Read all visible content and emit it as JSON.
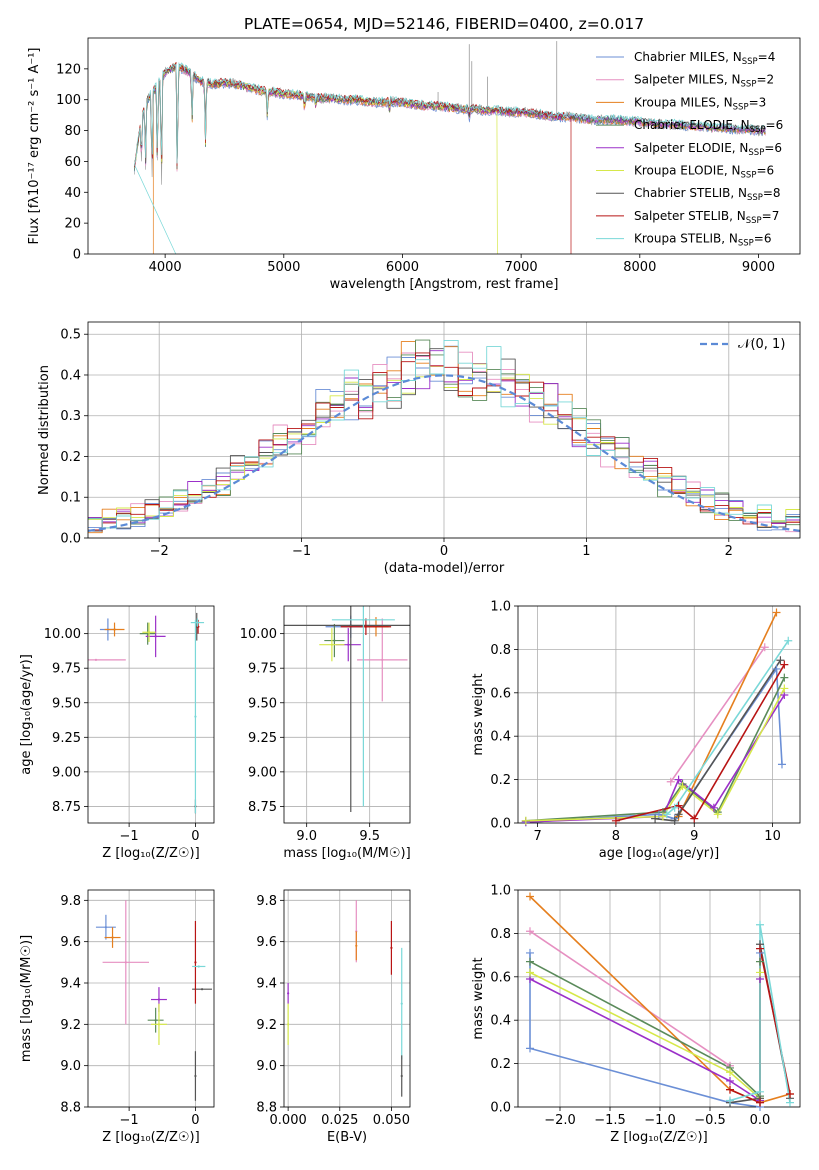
{
  "palette": [
    "#6b8fd6",
    "#e68fc1",
    "#e57f1e",
    "#5a8a5a",
    "#9b30c9",
    "#d6e84a",
    "#555555",
    "#b81414",
    "#7ad8d8"
  ],
  "chart_data": [
    {
      "id": "spectrum",
      "type": "line",
      "title": "PLATE=0654, MJD=52146, FIBERID=0400, z=0.017",
      "xlabel": "wavelength [Angstrom, rest frame]",
      "ylabel": "Flux [fλ10⁻¹⁷ erg cm⁻² s⁻¹ A⁻¹]",
      "xlim": [
        3350,
        9350
      ],
      "ylim": [
        0,
        140
      ],
      "xticks": [
        4000,
        5000,
        6000,
        7000,
        8000,
        9000
      ],
      "yticks": [
        0,
        20,
        40,
        60,
        80,
        100,
        120
      ],
      "grid": false,
      "legend_position": "top-right",
      "series": [
        {
          "name": "Chabrier MILES, N_SSP=4"
        },
        {
          "name": "Salpeter MILES, N_SSP=2"
        },
        {
          "name": "Kroupa MILES, N_SSP=3"
        },
        {
          "name": "Chabrier ELODIE, N_SSP=6"
        },
        {
          "name": "Salpeter ELODIE, N_SSP=6"
        },
        {
          "name": "Kroupa ELODIE, N_SSP=6"
        },
        {
          "name": "Chabrier STELIB, N_SSP=8"
        },
        {
          "name": "Salpeter STELIB, N_SSP=7"
        },
        {
          "name": "Kroupa STELIB, N_SSP=6"
        }
      ],
      "continuum": [
        [
          3740,
          55
        ],
        [
          3800,
          88
        ],
        [
          3850,
          100
        ],
        [
          3900,
          105
        ],
        [
          4000,
          118
        ],
        [
          4100,
          122
        ],
        [
          4200,
          118
        ],
        [
          4300,
          112
        ],
        [
          4400,
          110
        ],
        [
          4500,
          111
        ],
        [
          4600,
          110
        ],
        [
          4700,
          108
        ],
        [
          4800,
          106
        ],
        [
          4900,
          105
        ],
        [
          5000,
          104
        ],
        [
          5100,
          103
        ],
        [
          5200,
          102
        ],
        [
          5300,
          101
        ],
        [
          5400,
          101
        ],
        [
          5500,
          100
        ],
        [
          5600,
          100
        ],
        [
          5700,
          99
        ],
        [
          5800,
          98
        ],
        [
          5900,
          99
        ],
        [
          6000,
          98
        ],
        [
          6100,
          97
        ],
        [
          6200,
          96
        ],
        [
          6300,
          96
        ],
        [
          6400,
          95
        ],
        [
          6500,
          94
        ],
        [
          6600,
          94
        ],
        [
          6700,
          93
        ],
        [
          6800,
          93
        ],
        [
          6900,
          92
        ],
        [
          7000,
          92
        ],
        [
          7100,
          91
        ],
        [
          7200,
          90
        ],
        [
          7300,
          89
        ],
        [
          7400,
          89
        ],
        [
          7500,
          88
        ],
        [
          7600,
          87
        ],
        [
          7700,
          87
        ],
        [
          7800,
          87
        ],
        [
          7900,
          86
        ],
        [
          8000,
          86
        ],
        [
          8100,
          85
        ],
        [
          8200,
          84
        ],
        [
          8300,
          84
        ],
        [
          8400,
          83
        ],
        [
          8500,
          83
        ],
        [
          8600,
          82
        ],
        [
          8700,
          82
        ],
        [
          8800,
          81
        ],
        [
          8900,
          81
        ],
        [
          9000,
          80
        ],
        [
          9060,
          80
        ]
      ],
      "absorption_lines": [
        [
          3800,
          58
        ],
        [
          3835,
          55
        ],
        [
          3889,
          45
        ],
        [
          3934,
          55
        ],
        [
          3969,
          38
        ],
        [
          4102,
          40
        ],
        [
          4227,
          85
        ],
        [
          4340,
          72
        ],
        [
          4861,
          88
        ],
        [
          5175,
          94
        ],
        [
          5270,
          96
        ],
        [
          5890,
          93
        ],
        [
          6563,
          88
        ]
      ],
      "emission_lines": [
        [
          6300,
          105
        ],
        [
          6563,
          136
        ],
        [
          6584,
          125
        ],
        [
          6717,
          115
        ],
        [
          7300,
          138
        ]
      ],
      "model_cutoffs": [
        {
          "series": 2,
          "x": 3900
        },
        {
          "series": 8,
          "x": 4090
        },
        {
          "series": 5,
          "x": 6800
        },
        {
          "series": 7,
          "x": 7420
        }
      ]
    },
    {
      "id": "residuals",
      "type": "line",
      "xlabel": "(data-model)/error",
      "ylabel": "Normed distribution",
      "xlim": [
        -2.5,
        2.5
      ],
      "ylim": [
        0,
        0.53
      ],
      "xticks": [
        -2,
        -1,
        0,
        1,
        2
      ],
      "yticks": [
        0.0,
        0.1,
        0.2,
        0.3,
        0.4,
        0.5
      ],
      "grid": true,
      "legend_position": "top-right",
      "reference": {
        "name": "𝒩(0, 1)",
        "mu": 0,
        "sigma": 1
      },
      "bin_width": 0.1
    },
    {
      "id": "age-vs-Z",
      "type": "scatter",
      "xlabel": "Z [log₁₀(Z/Z☉)]",
      "ylabel": "age  [log₁₀(age/yr)]",
      "xlim": [
        -1.62,
        0.28
      ],
      "ylim": [
        8.63,
        10.2
      ],
      "xticks": [
        -1,
        0
      ],
      "yticks": [
        8.75,
        9.0,
        9.25,
        9.5,
        9.75,
        10.0
      ],
      "grid": true,
      "points": [
        {
          "s": 0,
          "x": -1.32,
          "xerr": 0.12,
          "y": 10.03,
          "yerr": 0.08
        },
        {
          "s": 1,
          "x": -1.5,
          "xerr": 0.45,
          "y": 9.81,
          "yerr": 0.0
        },
        {
          "s": 2,
          "x": -1.22,
          "xerr": 0.15,
          "y": 10.03,
          "yerr": 0.05
        },
        {
          "s": 3,
          "x": -0.72,
          "xerr": 0.12,
          "y": 10.0,
          "yerr": 0.08
        },
        {
          "s": 4,
          "x": -0.6,
          "xerr": 0.15,
          "y": 9.98,
          "yerr": 0.15
        },
        {
          "s": 5,
          "x": -0.7,
          "xerr": 0.1,
          "y": 10.01,
          "yerr": 0.07
        },
        {
          "s": 6,
          "x": 0.02,
          "xerr": 0.0,
          "y": 10.05,
          "yerr": 0.1
        },
        {
          "s": 7,
          "x": 0.04,
          "xerr": 0.02,
          "y": 10.05,
          "yerr": 0.05
        },
        {
          "s": 8,
          "x": 0.03,
          "xerr": 0.1,
          "y": 10.08,
          "yerr": 0.03
        },
        {
          "s": 6,
          "x": 0.0,
          "xerr": 0.0,
          "y": 8.75,
          "yerr": 0.05
        },
        {
          "s": 8,
          "x": 0.0,
          "xerr": 0.0,
          "y": 9.4,
          "yerr": 0.7
        }
      ]
    },
    {
      "id": "age-vs-mass",
      "type": "scatter",
      "xlabel": "mass [log₁₀(M/M☉)]",
      "ylabel": "",
      "xlim": [
        8.82,
        9.82
      ],
      "ylim": [
        8.63,
        10.2
      ],
      "xticks": [
        9.0,
        9.5
      ],
      "yticks": [
        8.75,
        9.0,
        9.25,
        9.5,
        9.75,
        10.0
      ],
      "grid": true,
      "points": [
        {
          "s": 0,
          "x": 9.35,
          "xerr": 0.2,
          "y": 10.05,
          "yerr": 0.08
        },
        {
          "s": 1,
          "x": 9.6,
          "xerr": 0.2,
          "y": 9.81,
          "yerr": 0.3
        },
        {
          "s": 2,
          "x": 9.55,
          "xerr": 0.1,
          "y": 10.05,
          "yerr": 0.07
        },
        {
          "s": 3,
          "x": 9.22,
          "xerr": 0.08,
          "y": 9.95,
          "yerr": 0.12
        },
        {
          "s": 4,
          "x": 9.33,
          "xerr": 0.1,
          "y": 9.92,
          "yerr": 0.12
        },
        {
          "s": 5,
          "x": 9.2,
          "xerr": 0.1,
          "y": 9.92,
          "yerr": 0.12
        },
        {
          "s": 6,
          "x": 9.35,
          "xerr": 0.6,
          "y": 10.06,
          "yerr": 1.35
        },
        {
          "s": 7,
          "x": 9.47,
          "xerr": 0.2,
          "y": 10.05,
          "yerr": 0.06
        },
        {
          "s": 8,
          "x": 9.45,
          "xerr": 0.25,
          "y": 10.1,
          "yerr": 1.35
        }
      ]
    },
    {
      "id": "weight-vs-age",
      "type": "line",
      "xlabel": "age  [log₁₀(age/yr)]",
      "ylabel": "mass weight",
      "xlim": [
        6.75,
        10.35
      ],
      "ylim": [
        0,
        1.0
      ],
      "xticks": [
        7,
        8,
        9,
        10
      ],
      "yticks": [
        0.0,
        0.2,
        0.4,
        0.6,
        0.8,
        1.0
      ],
      "grid": true,
      "series": [
        {
          "s": 0,
          "x": [
            6.85,
            8.55,
            8.75,
            10.05,
            10.12
          ],
          "y": [
            0.003,
            0.04,
            0.02,
            0.71,
            0.27
          ]
        },
        {
          "s": 1,
          "x": [
            8.7,
            9.9
          ],
          "y": [
            0.19,
            0.81
          ]
        },
        {
          "s": 2,
          "x": [
            8.8,
            10.05
          ],
          "y": [
            0.03,
            0.97
          ]
        },
        {
          "s": 3,
          "x": [
            6.85,
            8.6,
            8.85,
            9.3,
            10.15
          ],
          "y": [
            0.01,
            0.05,
            0.18,
            0.05,
            0.67
          ]
        },
        {
          "s": 4,
          "x": [
            6.85,
            8.6,
            8.8,
            9.25,
            10.15
          ],
          "y": [
            0.005,
            0.03,
            0.2,
            0.07,
            0.59
          ]
        },
        {
          "s": 5,
          "x": [
            6.85,
            8.6,
            8.85,
            9.3,
            10.15
          ],
          "y": [
            0.01,
            0.03,
            0.17,
            0.04,
            0.62
          ]
        },
        {
          "s": 6,
          "x": [
            8.5,
            8.75,
            8.8,
            10.1
          ],
          "y": [
            0.02,
            0.01,
            0.04,
            0.75
          ]
        },
        {
          "s": 7,
          "x": [
            8.0,
            8.8,
            9.0,
            10.15
          ],
          "y": [
            0.01,
            0.08,
            0.02,
            0.73
          ]
        },
        {
          "s": 8,
          "x": [
            8.65,
            8.75,
            10.2
          ],
          "y": [
            0.04,
            0.07,
            0.84
          ]
        }
      ]
    },
    {
      "id": "mass-vs-Z",
      "type": "scatter",
      "xlabel": "Z [log₁₀(Z/Z☉)]",
      "ylabel": "mass [log₁₀(M/M☉)]",
      "xlim": [
        -1.62,
        0.28
      ],
      "ylim": [
        8.8,
        9.85
      ],
      "xticks": [
        -1,
        0
      ],
      "yticks": [
        8.8,
        9.0,
        9.2,
        9.4,
        9.6,
        9.8
      ],
      "grid": true,
      "points": [
        {
          "s": 0,
          "x": -1.35,
          "xerr": 0.15,
          "y": 9.67,
          "yerr": 0.06
        },
        {
          "s": 1,
          "x": -1.05,
          "xerr": 0.35,
          "y": 9.5,
          "yerr": 0.3
        },
        {
          "s": 2,
          "x": -1.25,
          "xerr": 0.12,
          "y": 9.62,
          "yerr": 0.05
        },
        {
          "s": 3,
          "x": -0.6,
          "xerr": 0.12,
          "y": 9.22,
          "yerr": 0.06
        },
        {
          "s": 4,
          "x": -0.55,
          "xerr": 0.12,
          "y": 9.32,
          "yerr": 0.06
        },
        {
          "s": 5,
          "x": -0.55,
          "xerr": 0.12,
          "y": 9.2,
          "yerr": 0.1
        },
        {
          "s": 6,
          "x": 0.1,
          "xerr": 0.15,
          "y": 9.37,
          "yerr": 0.0
        },
        {
          "s": 7,
          "x": 0.0,
          "xerr": 0.0,
          "y": 9.5,
          "yerr": 0.2
        },
        {
          "s": 8,
          "x": 0.05,
          "xerr": 0.1,
          "y": 9.48,
          "yerr": 0.0
        },
        {
          "s": 6,
          "x": 0.0,
          "xerr": 0.0,
          "y": 8.95,
          "yerr": 0.12
        }
      ]
    },
    {
      "id": "mass-vs-EBV",
      "type": "scatter",
      "xlabel": "E(B-V)",
      "ylabel": "",
      "xlim": [
        -0.002,
        0.059
      ],
      "ylim": [
        8.8,
        9.85
      ],
      "xticks": [
        0.0,
        0.025,
        0.05
      ],
      "yticks": [
        8.8,
        9.0,
        9.2,
        9.4,
        9.6,
        9.8
      ],
      "grid": true,
      "points": [
        {
          "s": 4,
          "x": 0.0,
          "xerr": 0.0,
          "y": 9.35,
          "yerr": 0.05
        },
        {
          "s": 5,
          "x": 0.0,
          "xerr": 0.0,
          "y": 9.2,
          "yerr": 0.1
        },
        {
          "s": 1,
          "x": 0.033,
          "xerr": 0.0,
          "y": 9.65,
          "yerr": 0.15
        },
        {
          "s": 2,
          "x": 0.033,
          "xerr": 0.0,
          "y": 9.58,
          "yerr": 0.07
        },
        {
          "s": 7,
          "x": 0.05,
          "xerr": 0.0,
          "y": 9.57,
          "yerr": 0.13
        },
        {
          "s": 8,
          "x": 0.055,
          "xerr": 0.0,
          "y": 9.3,
          "yerr": 0.27
        },
        {
          "s": 6,
          "x": 0.055,
          "xerr": 0.0,
          "y": 8.95,
          "yerr": 0.1
        }
      ]
    },
    {
      "id": "weight-vs-Z",
      "type": "line",
      "xlabel": "Z [log₁₀(Z/Z☉)]",
      "ylabel": "mass weight",
      "xlim": [
        -2.42,
        0.4
      ],
      "ylim": [
        0,
        1.0
      ],
      "xticks": [
        -2.0,
        -1.5,
        -1.0,
        -0.5,
        0.0
      ],
      "yticks": [
        0.0,
        0.2,
        0.4,
        0.6,
        0.8,
        1.0
      ],
      "grid": true,
      "series": [
        {
          "s": 0,
          "x": [
            -2.3,
            -2.3,
            -0.3,
            0.0,
            0.0
          ],
          "y": [
            0.71,
            0.27,
            0.02,
            0.0,
            0.71
          ]
        },
        {
          "s": 1,
          "x": [
            -2.3,
            -0.3
          ],
          "y": [
            0.81,
            0.19
          ]
        },
        {
          "s": 2,
          "x": [
            -2.3,
            -0.3,
            0.0,
            0.3
          ],
          "y": [
            0.97,
            0.08,
            0.02,
            0.06
          ]
        },
        {
          "s": 3,
          "x": [
            -2.3,
            -0.3,
            0.0,
            0.0
          ],
          "y": [
            0.67,
            0.18,
            0.05,
            0.67
          ]
        },
        {
          "s": 4,
          "x": [
            -2.3,
            -0.3,
            0.0,
            0.0
          ],
          "y": [
            0.59,
            0.12,
            0.03,
            0.59
          ]
        },
        {
          "s": 5,
          "x": [
            -2.3,
            -0.3,
            0.0,
            0.0
          ],
          "y": [
            0.62,
            0.16,
            0.04,
            0.62
          ]
        },
        {
          "s": 6,
          "x": [
            -0.3,
            0.0,
            0.0,
            0.3
          ],
          "y": [
            0.02,
            0.04,
            0.75,
            0.04
          ]
        },
        {
          "s": 7,
          "x": [
            -0.3,
            0.0,
            0.0,
            0.3
          ],
          "y": [
            0.08,
            0.02,
            0.73,
            0.06
          ]
        },
        {
          "s": 8,
          "x": [
            -0.3,
            0.0,
            0.0,
            0.3
          ],
          "y": [
            0.03,
            0.07,
            0.84,
            0.02
          ]
        }
      ]
    }
  ]
}
